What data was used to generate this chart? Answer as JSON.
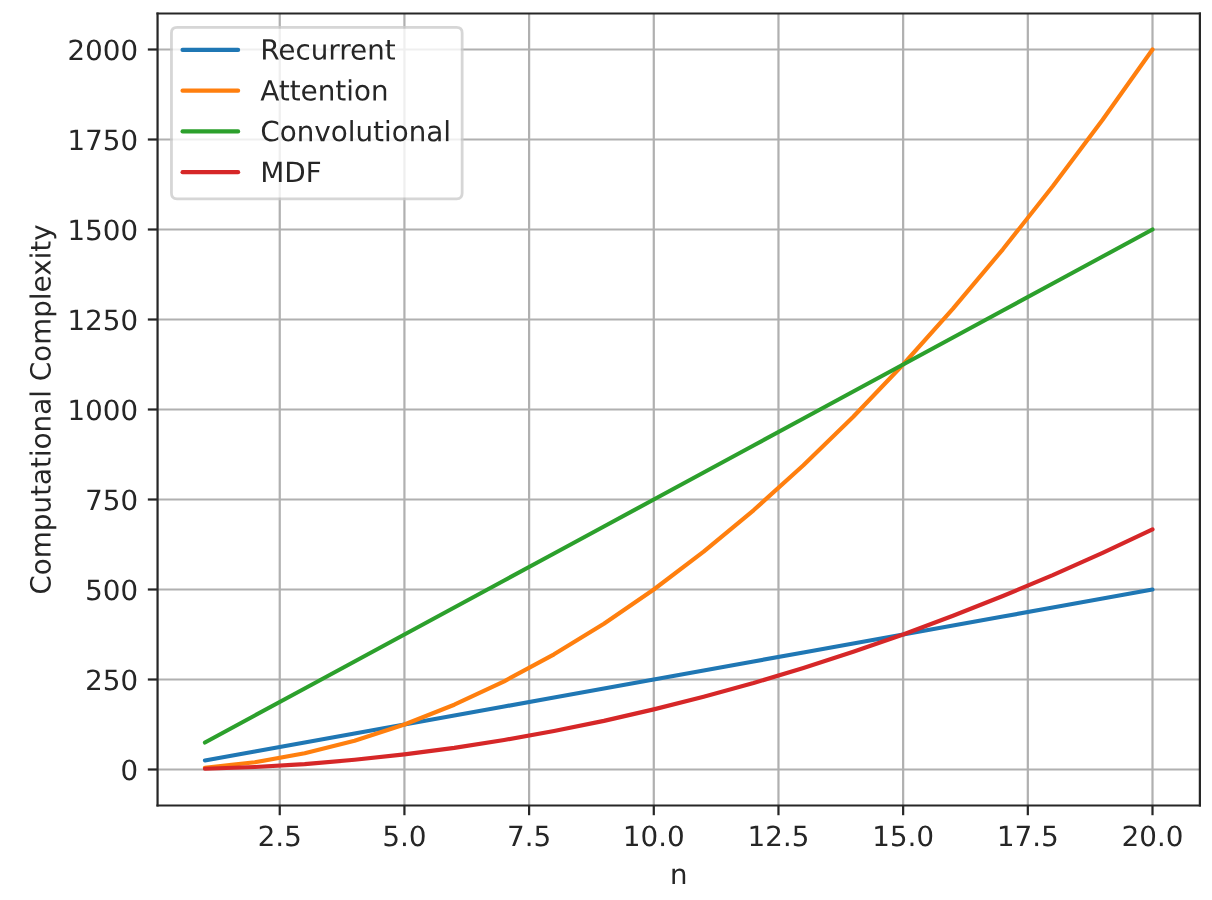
{
  "chart_data": {
    "type": "line",
    "xlabel": "n",
    "ylabel": "Computational Complexity",
    "x": [
      1,
      2,
      3,
      4,
      5,
      6,
      7,
      8,
      9,
      10,
      11,
      12,
      13,
      14,
      15,
      16,
      17,
      18,
      19,
      20
    ],
    "series": [
      {
        "name": "Recurrent",
        "color": "#1f77b4",
        "values": [
          25,
          50,
          75,
          100,
          125,
          150,
          175,
          200,
          225,
          250,
          275,
          300,
          325,
          350,
          375,
          400,
          425,
          450,
          475,
          500
        ]
      },
      {
        "name": "Attention",
        "color": "#ff7f0e",
        "values": [
          5,
          20,
          45,
          80,
          125,
          180,
          245,
          320,
          405,
          500,
          605,
          720,
          845,
          980,
          1125,
          1280,
          1445,
          1620,
          1805,
          2000
        ]
      },
      {
        "name": "Convolutional",
        "color": "#2ca02c",
        "values": [
          75,
          150,
          225,
          300,
          375,
          450,
          525,
          600,
          675,
          750,
          825,
          900,
          975,
          1050,
          1125,
          1200,
          1275,
          1350,
          1425,
          1500
        ]
      },
      {
        "name": "MDF",
        "color": "#d62728",
        "values": [
          2,
          7,
          15,
          27,
          42,
          60,
          82,
          107,
          135,
          167,
          202,
          240,
          282,
          327,
          375,
          427,
          482,
          540,
          602,
          667
        ]
      }
    ],
    "xlim": [
      0.05,
      20.95
    ],
    "xticks": [
      {
        "value": 2.5,
        "label": "2.5"
      },
      {
        "value": 5,
        "label": "5.0"
      },
      {
        "value": 7.5,
        "label": "7.5"
      },
      {
        "value": 10,
        "label": "10.0"
      },
      {
        "value": 12.5,
        "label": "12.5"
      },
      {
        "value": 15,
        "label": "15.0"
      },
      {
        "value": 17.5,
        "label": "17.5"
      },
      {
        "value": 20,
        "label": "20.0"
      }
    ],
    "ylim": [
      -100,
      2100
    ],
    "yticks": [
      0,
      250,
      500,
      750,
      1000,
      1250,
      1500,
      1750,
      2000
    ],
    "grid": true,
    "legend": "top left",
    "marker": "none",
    "line_style": "solid"
  }
}
